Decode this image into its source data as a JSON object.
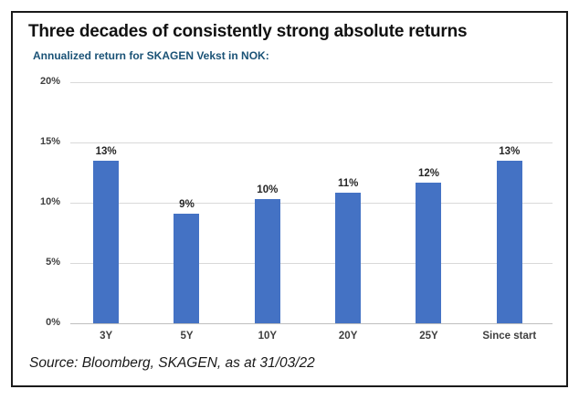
{
  "slide": {
    "title": "Three decades of consistently strong absolute returns",
    "subtitle": "Annualized return for SKAGEN Vekst in NOK:",
    "source": "Source: Bloomberg, SKAGEN, as at 31/03/22"
  },
  "colors": {
    "bar": "#4472C4",
    "subtitle_text": "#1A5276",
    "gridline": "#D9D9D9",
    "axis_line": "#BFBFBF",
    "axis_text": "#3F3F3F",
    "frame_border": "#1A1A1A"
  },
  "chart_data": {
    "type": "bar",
    "title": "Annualized return for SKAGEN Vekst in NOK",
    "categories": [
      "3Y",
      "5Y",
      "10Y",
      "20Y",
      "25Y",
      "Since start"
    ],
    "values": [
      13,
      9,
      10,
      11,
      12,
      13
    ],
    "value_labels": [
      "13%",
      "9%",
      "10%",
      "11%",
      "12%",
      "13%"
    ],
    "bar_heights_pct": [
      13.5,
      9.1,
      10.3,
      10.8,
      11.7,
      13.5
    ],
    "xlabel": "",
    "ylabel": "",
    "ylim": [
      0,
      20
    ],
    "yticks": [
      20,
      15,
      10,
      5,
      0
    ],
    "ytick_labels": [
      "20%",
      "15%",
      "10%",
      "5%",
      "0%"
    ],
    "grid": true,
    "legend": false
  }
}
